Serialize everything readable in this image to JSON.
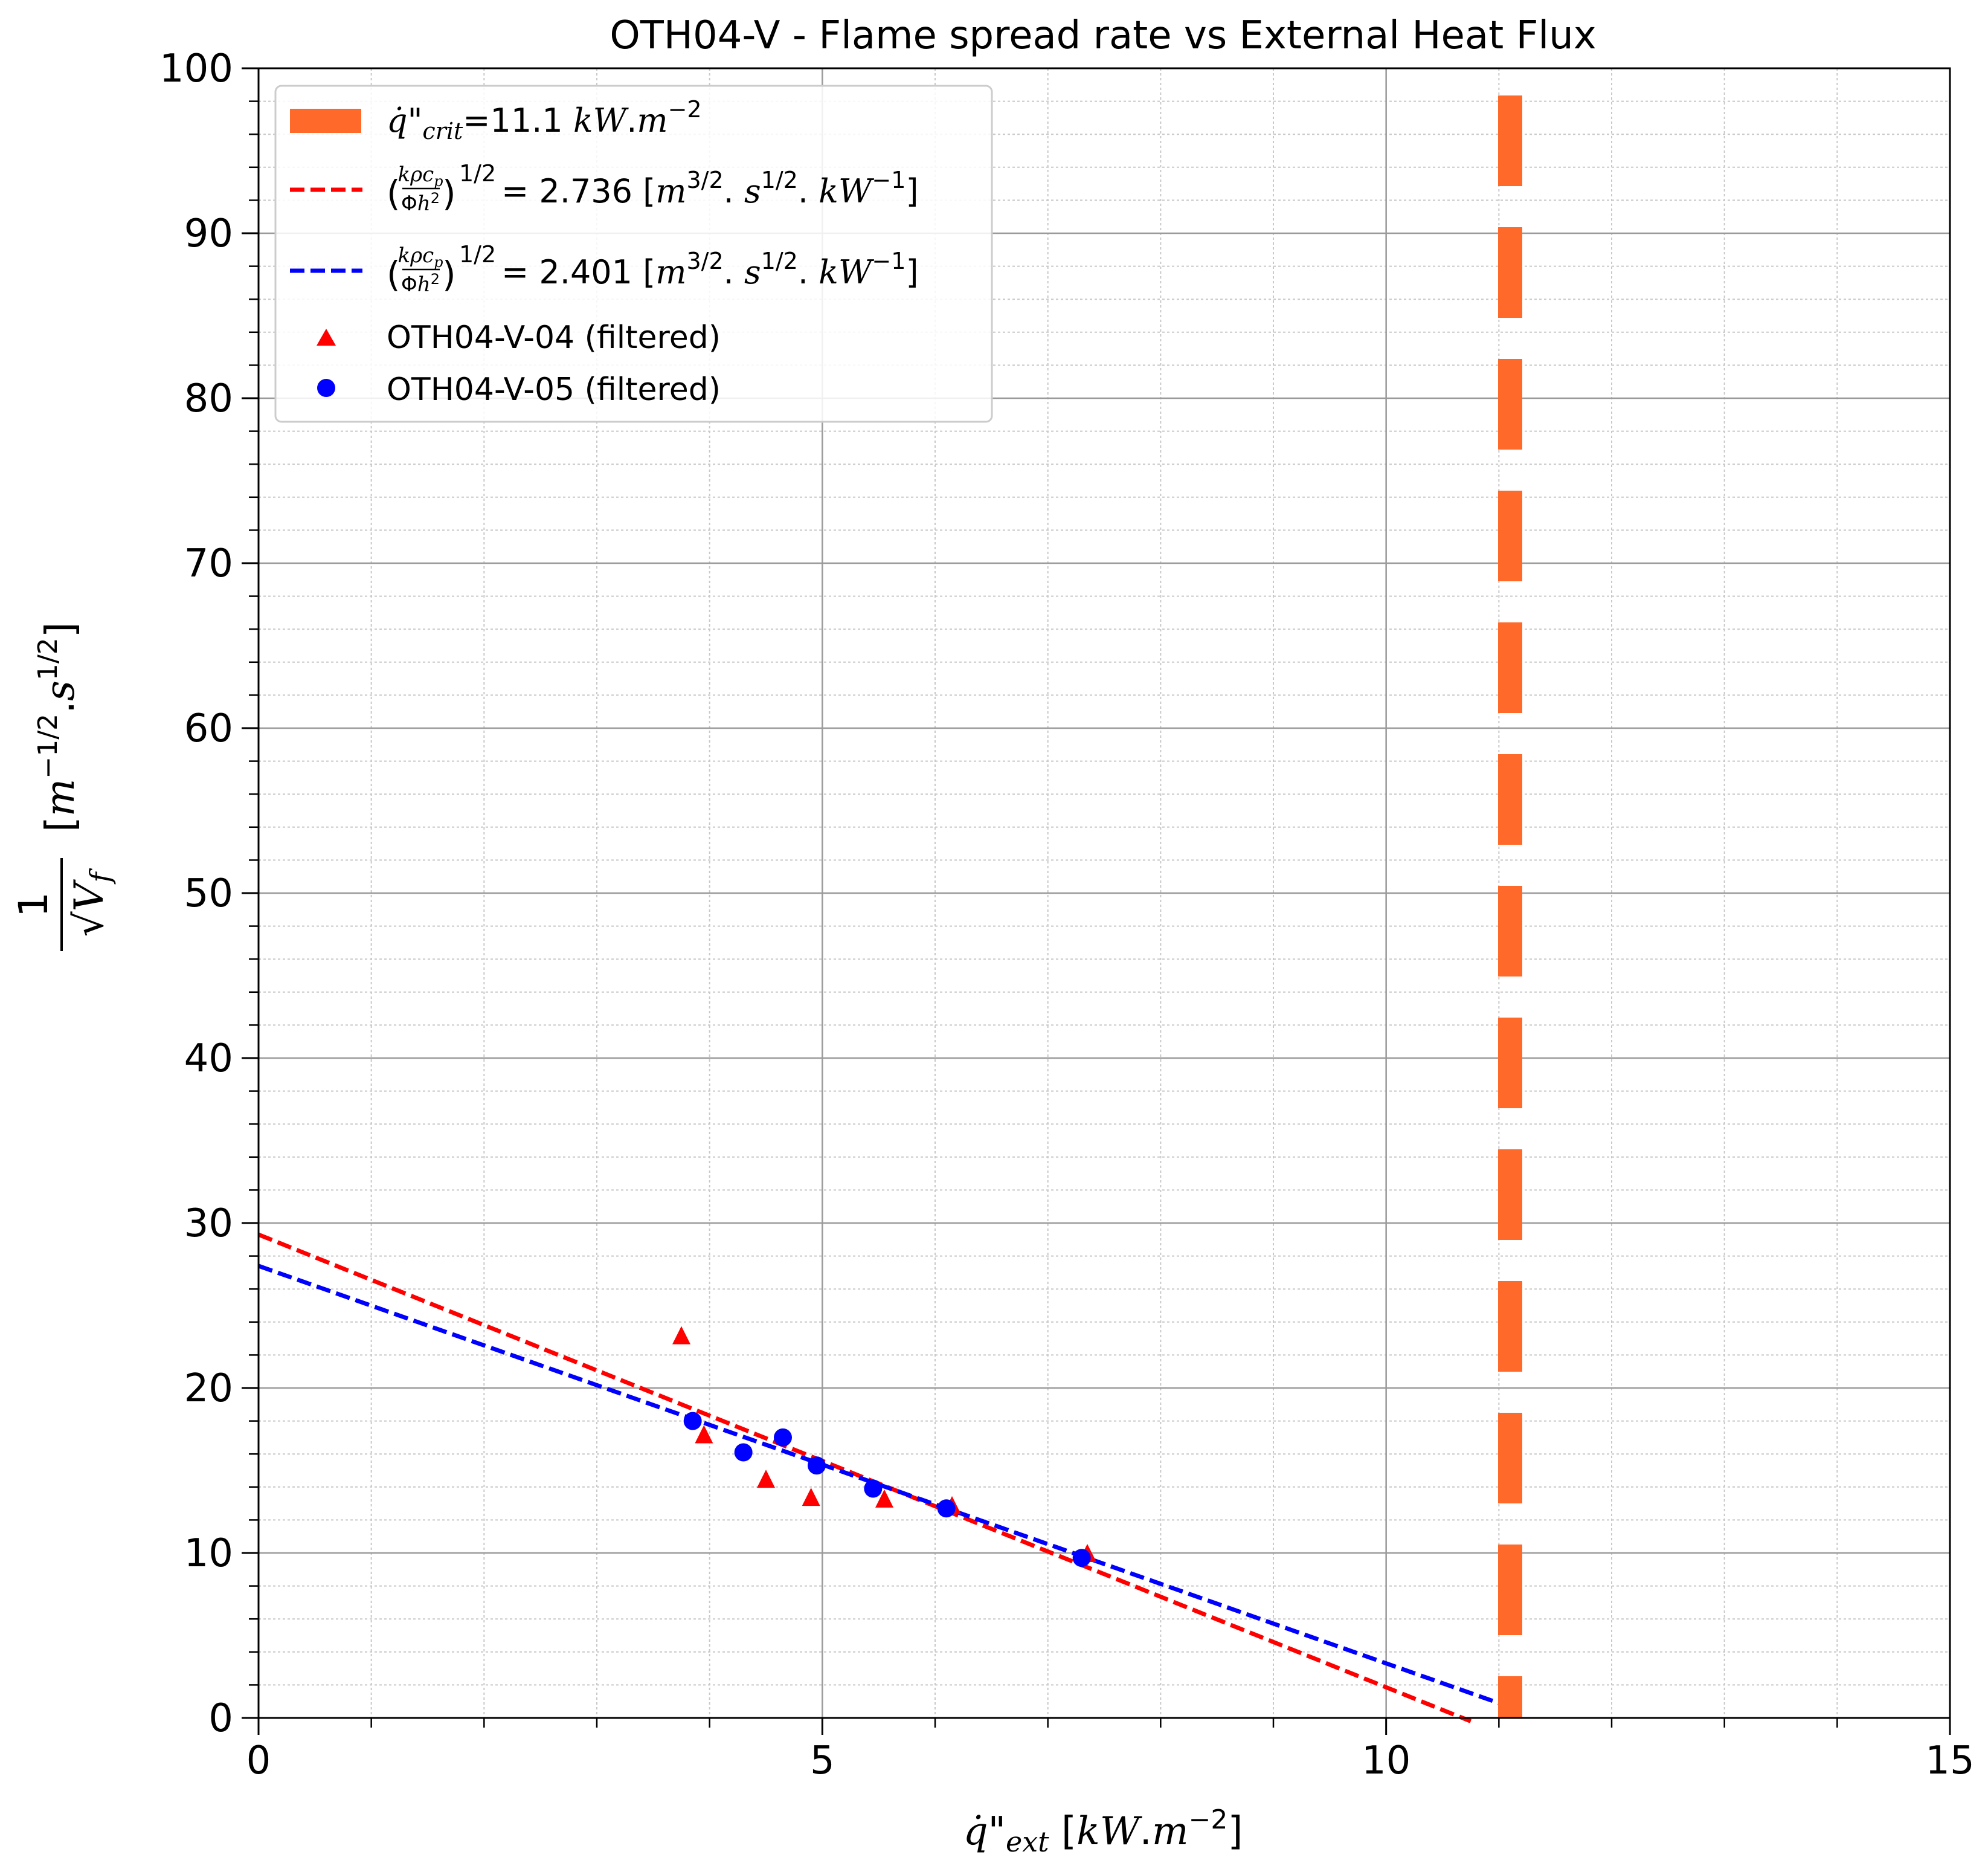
{
  "chart_data": {
    "type": "scatter",
    "title": "OTH04-V - Flame spread rate vs External Heat Flux",
    "xlabel": "q̇\"ext [kW.m⁻²]",
    "ylabel": "1/√Vf [m^-1/2.s^1/2]",
    "xlim": [
      0,
      15
    ],
    "ylim": [
      0,
      100
    ],
    "x_ticks": [
      0,
      5,
      10,
      15
    ],
    "y_ticks": [
      0,
      10,
      20,
      30,
      40,
      50,
      60,
      70,
      80,
      90,
      100
    ],
    "x_minor_step": 1,
    "y_minor_step": 2,
    "grid": true,
    "legend_position": "upper-left",
    "colors": {
      "critical": "#ff6a2a",
      "fit_red": "#ff0000",
      "fit_blue": "#0000ff",
      "major_grid": "#9a9a9a",
      "minor_grid": "#c8c8c8"
    },
    "critical_line": {
      "x": 11.1,
      "legend": "q̇\"crit=11.1 kW.m⁻²"
    },
    "fits": [
      {
        "name": "(kρcp/Φh²)^1/2 = 2.736 [m^3/2.s^1/2.kW^-1]",
        "value": "2.736",
        "color": "#ff0000",
        "x": [
          0,
          10.75
        ],
        "y": [
          29.3,
          -0.2
        ]
      },
      {
        "name": "(kρcp/Φh²)^1/2 = 2.401 [m^3/2.s^1/2.kW^-1]",
        "value": "2.401",
        "color": "#0000ff",
        "x": [
          0,
          11.0
        ],
        "y": [
          27.4,
          0.9
        ]
      }
    ],
    "series": [
      {
        "name": "OTH04-V-04 (filtered)",
        "marker": "triangle",
        "color": "#ff0000",
        "points": [
          [
            3.75,
            23.2
          ],
          [
            3.95,
            17.2
          ],
          [
            4.5,
            14.5
          ],
          [
            4.9,
            13.4
          ],
          [
            5.55,
            13.3
          ],
          [
            6.15,
            12.9
          ],
          [
            7.35,
            10.0
          ]
        ]
      },
      {
        "name": "OTH04-V-05 (filtered)",
        "marker": "circle",
        "color": "#0000ff",
        "points": [
          [
            3.85,
            18.0
          ],
          [
            4.3,
            16.1
          ],
          [
            4.65,
            17.0
          ],
          [
            4.95,
            15.3
          ],
          [
            5.45,
            13.9
          ],
          [
            6.1,
            12.7
          ],
          [
            7.3,
            9.7
          ]
        ]
      }
    ]
  }
}
